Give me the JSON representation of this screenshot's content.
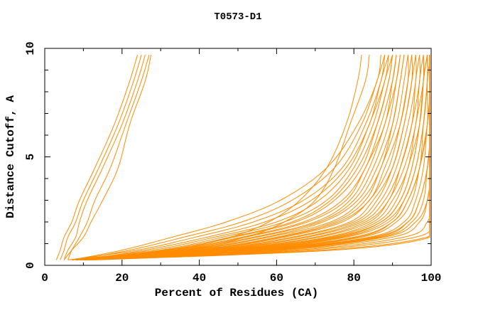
{
  "title": "T0573-D1",
  "chart_data": {
    "type": "line",
    "title": "T0573-D1",
    "xlabel": "Percent of Residues (CA)",
    "ylabel": "Distance Cutoff, A",
    "xlim": [
      0,
      100
    ],
    "ylim": [
      0,
      10
    ],
    "x_major_ticks": [
      0,
      20,
      40,
      60,
      80,
      100
    ],
    "x_minor_ticks": [
      10,
      30,
      50,
      70,
      90
    ],
    "y_major_ticks": [
      0,
      5,
      10
    ],
    "y_minor_ticks": [
      1,
      2,
      3,
      4,
      6,
      7,
      8,
      9
    ],
    "grid": false,
    "legend": "none",
    "line_color": "#ff8c00",
    "axis_color": "#000000",
    "background_color": "#ffffff",
    "cutoff_grid": [
      0.25,
      0.7,
      1.3,
      2.0,
      3.0,
      4.5,
      6.5,
      8.5,
      9.7
    ],
    "curves": [
      [
        3,
        4,
        5,
        7,
        9,
        13,
        18,
        22,
        24
      ],
      [
        4,
        5,
        6,
        8,
        10,
        14,
        19,
        23,
        25
      ],
      [
        5,
        6,
        8,
        9,
        11,
        15,
        20,
        24,
        26
      ],
      [
        6,
        7,
        9,
        11,
        13,
        17,
        21,
        25,
        27
      ],
      [
        5,
        7,
        10,
        12,
        15,
        19,
        22,
        26,
        27.5
      ],
      [
        10,
        33,
        48,
        58,
        66,
        73,
        78,
        81,
        82
      ],
      [
        11,
        36,
        52,
        62,
        70,
        75,
        79,
        83,
        84
      ],
      [
        13,
        75,
        100,
        100,
        100,
        100,
        100,
        100,
        100
      ],
      [
        12,
        72,
        99,
        100,
        100,
        100,
        100,
        100,
        100
      ],
      [
        12,
        68,
        96,
        100,
        100,
        100,
        100,
        100,
        100
      ],
      [
        11,
        65,
        93,
        99,
        100,
        100,
        100,
        100,
        100
      ],
      [
        11,
        62,
        90,
        97,
        99,
        100,
        100,
        100,
        100
      ],
      [
        10,
        60,
        88,
        96,
        99,
        100,
        100,
        100,
        100
      ],
      [
        12,
        58,
        86,
        94,
        97,
        99,
        100,
        100,
        100
      ],
      [
        10,
        57,
        85,
        94,
        97,
        99,
        100,
        100,
        100
      ],
      [
        11,
        56,
        84,
        93,
        96,
        98,
        99,
        100,
        100
      ],
      [
        9,
        55,
        82,
        91,
        95,
        97,
        99,
        100,
        100
      ],
      [
        10,
        54,
        81,
        90,
        94,
        97,
        99,
        99,
        100
      ],
      [
        12,
        53,
        80,
        90,
        94,
        97,
        98,
        99,
        99
      ],
      [
        9,
        52,
        78,
        89,
        93,
        96,
        98,
        99,
        99
      ],
      [
        11,
        51,
        77,
        88,
        93,
        96,
        98,
        99,
        99
      ],
      [
        10,
        50,
        76,
        87,
        92,
        95,
        97,
        98,
        99
      ],
      [
        9,
        49,
        74,
        86,
        91,
        94,
        97,
        98,
        98
      ],
      [
        12,
        48,
        73,
        85,
        90,
        94,
        96,
        98,
        98
      ],
      [
        8,
        47,
        71,
        84,
        89,
        93,
        96,
        97,
        98
      ],
      [
        10,
        46,
        70,
        83,
        89,
        92,
        95,
        97,
        97
      ],
      [
        9,
        45,
        68,
        82,
        88,
        92,
        95,
        96,
        97
      ],
      [
        11,
        44,
        67,
        81,
        87,
        91,
        94,
        96,
        96
      ],
      [
        8,
        43,
        65,
        80,
        86,
        90,
        93,
        95,
        96
      ],
      [
        10,
        42,
        64,
        79,
        85,
        90,
        93,
        95,
        95
      ],
      [
        9,
        41,
        62,
        77,
        84,
        89,
        92,
        94,
        95
      ],
      [
        11,
        40,
        61,
        76,
        84,
        88,
        92,
        94,
        94
      ],
      [
        8,
        39,
        60,
        75,
        83,
        87,
        91,
        93,
        94
      ],
      [
        10,
        38,
        58,
        74,
        82,
        87,
        90,
        92,
        93
      ],
      [
        9,
        37,
        57,
        72,
        81,
        86,
        90,
        92,
        93
      ],
      [
        7,
        36,
        55,
        71,
        80,
        85,
        89,
        91,
        92
      ],
      [
        10,
        35,
        54,
        70,
        79,
        84,
        88,
        91,
        92
      ],
      [
        8,
        34,
        52,
        68,
        78,
        83,
        88,
        90,
        91
      ],
      [
        9,
        33,
        51,
        67,
        77,
        83,
        87,
        90,
        91
      ],
      [
        7,
        32,
        49,
        65,
        75,
        82,
        86,
        89,
        90
      ],
      [
        9,
        31,
        48,
        64,
        74,
        81,
        86,
        89,
        90
      ],
      [
        8,
        30,
        46,
        62,
        73,
        80,
        85,
        88,
        90
      ],
      [
        7,
        28,
        44,
        60,
        71,
        79,
        84,
        88,
        89
      ],
      [
        9,
        26,
        42,
        57,
        69,
        78,
        84,
        87,
        89
      ],
      [
        6,
        24,
        39,
        54,
        67,
        77,
        83,
        87,
        88
      ],
      [
        8,
        22,
        36,
        51,
        64,
        75,
        82,
        86,
        88
      ],
      [
        7,
        20,
        33,
        47,
        61,
        73,
        81,
        86,
        87
      ],
      [
        10,
        48,
        75,
        87,
        92,
        95,
        97,
        98,
        99
      ],
      [
        11,
        59,
        87,
        95,
        98,
        99,
        100,
        100,
        100
      ]
    ]
  }
}
